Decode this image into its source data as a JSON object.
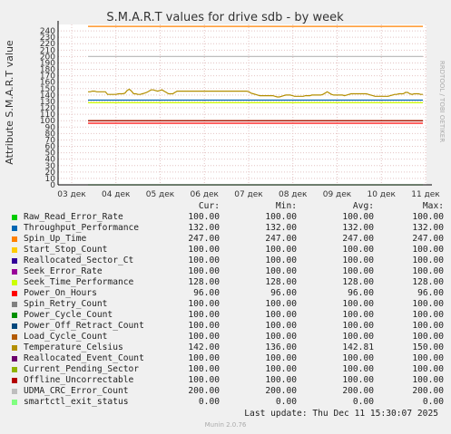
{
  "chart_data": {
    "type": "line",
    "title": "S.M.A.R.T values for drive sdb - by week",
    "ylabel": "Attribute S.M.A.R.T value",
    "side_label": "RRDTOOL / TOBI OETIKER",
    "ylim": [
      0,
      250
    ],
    "yticks": [
      0,
      10,
      20,
      30,
      40,
      50,
      60,
      70,
      80,
      90,
      100,
      110,
      120,
      130,
      140,
      150,
      160,
      170,
      180,
      190,
      200,
      210,
      220,
      230,
      240
    ],
    "x_ticks": [
      "03 дек",
      "04 дек",
      "05 дек",
      "06 дек",
      "07 дек",
      "08 дек",
      "09 дек",
      "10 дек",
      "11 дек"
    ],
    "series": [
      {
        "name": "Raw_Read_Error_Rate",
        "color": "#00cc00",
        "values": [
          100,
          100
        ]
      },
      {
        "name": "Throughput_Performance",
        "color": "#0066b3",
        "values": [
          132,
          132
        ]
      },
      {
        "name": "Spin_Up_Time",
        "color": "#ff8000",
        "values": [
          247,
          247
        ]
      },
      {
        "name": "Start_Stop_Count",
        "color": "#ffcc00",
        "values": [
          100,
          100
        ]
      },
      {
        "name": "Reallocated_Sector_Ct",
        "color": "#330099",
        "values": [
          100,
          100
        ]
      },
      {
        "name": "Seek_Error_Rate",
        "color": "#990099",
        "values": [
          100,
          100
        ]
      },
      {
        "name": "Seek_Time_Performance",
        "color": "#ccff00",
        "values": [
          128,
          128
        ]
      },
      {
        "name": "Power_On_Hours",
        "color": "#ff0000",
        "values": [
          96,
          96
        ]
      },
      {
        "name": "Spin_Retry_Count",
        "color": "#808080",
        "values": [
          100,
          100
        ]
      },
      {
        "name": "Power_Cycle_Count",
        "color": "#008f00",
        "values": [
          100,
          100
        ]
      },
      {
        "name": "Power_Off_Retract_Count",
        "color": "#00487d",
        "values": [
          100,
          100
        ]
      },
      {
        "name": "Load_Cycle_Count",
        "color": "#b35a00",
        "values": [
          100,
          100
        ]
      },
      {
        "name": "Temperature_Celsius",
        "color": "#b38f00",
        "values": [
          145,
          145,
          146,
          146,
          145,
          145,
          145,
          145,
          145,
          141,
          141,
          141,
          141,
          141,
          142,
          142,
          142,
          143,
          147,
          149,
          146,
          142,
          142,
          141,
          141,
          142,
          143,
          144,
          146,
          148,
          148,
          147,
          146,
          147,
          148,
          146,
          144,
          142,
          142,
          142,
          144,
          146,
          146,
          146,
          146,
          146,
          146,
          146,
          146,
          146,
          146,
          146,
          146,
          146,
          146,
          146,
          146,
          146,
          146,
          146,
          146,
          146,
          146,
          146,
          146,
          146,
          146,
          146,
          146,
          146,
          146,
          146,
          146,
          146,
          145,
          143,
          142,
          141,
          140,
          139,
          139,
          139,
          139,
          139,
          139,
          139,
          138,
          137,
          137,
          138,
          139,
          140,
          140,
          140,
          139,
          138,
          138,
          138,
          138,
          138,
          139,
          139,
          139,
          140,
          140,
          140,
          140,
          140,
          141,
          143,
          145,
          143,
          141,
          140,
          140,
          140,
          140,
          140,
          139,
          140,
          141,
          142,
          142,
          142,
          142,
          142,
          142,
          142,
          142,
          141,
          140,
          139,
          138,
          138,
          138,
          138,
          138,
          138,
          138,
          139,
          140,
          141,
          141,
          142,
          142,
          142,
          144,
          144,
          142,
          141,
          142,
          142,
          142,
          141,
          141
        ]
      },
      {
        "name": "Reallocated_Event_Count",
        "color": "#6b006b",
        "values": [
          100,
          100
        ]
      },
      {
        "name": "Current_Pending_Sector",
        "color": "#8fb300",
        "values": [
          100,
          100
        ]
      },
      {
        "name": "Offline_Uncorrectable",
        "color": "#b30000",
        "values": [
          100,
          100
        ]
      },
      {
        "name": "UDMA_CRC_Error_Count",
        "color": "#bebebe",
        "values": [
          200,
          200
        ]
      },
      {
        "name": "smartctl_exit_status",
        "color": "#80ff80",
        "values": [
          0,
          0
        ]
      }
    ]
  },
  "legend": {
    "headers": {
      "cur": "Cur:",
      "min": "Min:",
      "avg": "Avg:",
      "max": "Max:"
    },
    "rows": [
      {
        "name": "Raw_Read_Error_Rate",
        "cur": "100.00",
        "min": "100.00",
        "avg": "100.00",
        "max": "100.00"
      },
      {
        "name": "Throughput_Performance",
        "cur": "132.00",
        "min": "132.00",
        "avg": "132.00",
        "max": "132.00"
      },
      {
        "name": "Spin_Up_Time",
        "cur": "247.00",
        "min": "247.00",
        "avg": "247.00",
        "max": "247.00"
      },
      {
        "name": "Start_Stop_Count",
        "cur": "100.00",
        "min": "100.00",
        "avg": "100.00",
        "max": "100.00"
      },
      {
        "name": "Reallocated_Sector_Ct",
        "cur": "100.00",
        "min": "100.00",
        "avg": "100.00",
        "max": "100.00"
      },
      {
        "name": "Seek_Error_Rate",
        "cur": "100.00",
        "min": "100.00",
        "avg": "100.00",
        "max": "100.00"
      },
      {
        "name": "Seek_Time_Performance",
        "cur": "128.00",
        "min": "128.00",
        "avg": "128.00",
        "max": "128.00"
      },
      {
        "name": "Power_On_Hours",
        "cur": "96.00",
        "min": "96.00",
        "avg": "96.00",
        "max": "96.00"
      },
      {
        "name": "Spin_Retry_Count",
        "cur": "100.00",
        "min": "100.00",
        "avg": "100.00",
        "max": "100.00"
      },
      {
        "name": "Power_Cycle_Count",
        "cur": "100.00",
        "min": "100.00",
        "avg": "100.00",
        "max": "100.00"
      },
      {
        "name": "Power_Off_Retract_Count",
        "cur": "100.00",
        "min": "100.00",
        "avg": "100.00",
        "max": "100.00"
      },
      {
        "name": "Load_Cycle_Count",
        "cur": "100.00",
        "min": "100.00",
        "avg": "100.00",
        "max": "100.00"
      },
      {
        "name": "Temperature_Celsius",
        "cur": "142.00",
        "min": "136.00",
        "avg": "142.81",
        "max": "150.00"
      },
      {
        "name": "Reallocated_Event_Count",
        "cur": "100.00",
        "min": "100.00",
        "avg": "100.00",
        "max": "100.00"
      },
      {
        "name": "Current_Pending_Sector",
        "cur": "100.00",
        "min": "100.00",
        "avg": "100.00",
        "max": "100.00"
      },
      {
        "name": "Offline_Uncorrectable",
        "cur": "100.00",
        "min": "100.00",
        "avg": "100.00",
        "max": "100.00"
      },
      {
        "name": "UDMA_CRC_Error_Count",
        "cur": "200.00",
        "min": "200.00",
        "avg": "200.00",
        "max": "200.00"
      },
      {
        "name": "smartctl_exit_status",
        "cur": "0.00",
        "min": "0.00",
        "avg": "0.00",
        "max": "0.00"
      }
    ]
  },
  "last_update": "Last update: Thu Dec 11 15:30:07 2025",
  "footer": "Munin 2.0.76"
}
